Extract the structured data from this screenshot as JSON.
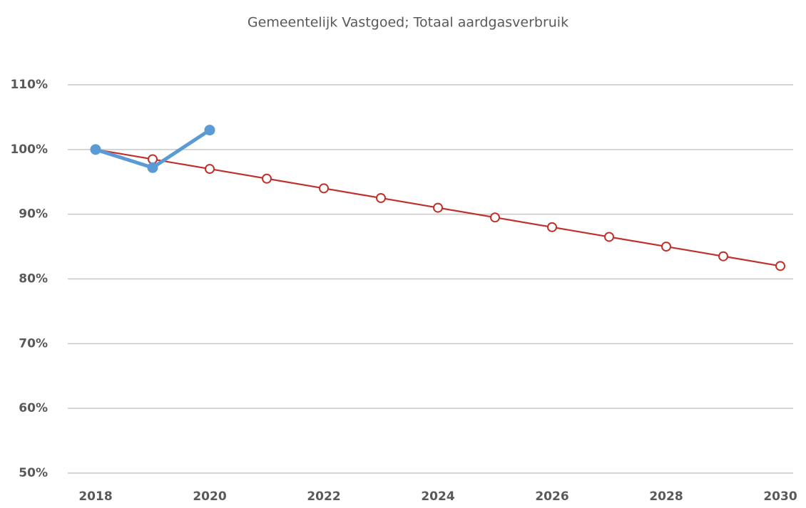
{
  "chart_data": {
    "type": "line",
    "title": "Gemeentelijk Vastgoed; Totaal aardgasverbruik",
    "x": [
      2018,
      2019,
      2020,
      2021,
      2022,
      2023,
      2024,
      2025,
      2026,
      2027,
      2028,
      2029,
      2030
    ],
    "series": [
      {
        "color": "#c0302b",
        "values": [
          100,
          98.5,
          97,
          95.5,
          94,
          92.5,
          91,
          89.5,
          88,
          86.5,
          85,
          83.5,
          82
        ]
      },
      {
        "color": "#5b9bd5",
        "values": [
          100,
          97.2,
          103,
          null,
          null,
          null,
          null,
          null,
          null,
          null,
          null,
          null,
          null
        ]
      }
    ],
    "xlim": [
      2018,
      2030
    ],
    "xticks": [
      2018,
      2020,
      2022,
      2024,
      2026,
      2028,
      2030
    ],
    "ylim": [
      50,
      110
    ],
    "yticks": [
      {
        "value": 50,
        "label": "50%"
      },
      {
        "value": 60,
        "label": "60%"
      },
      {
        "value": 70,
        "label": "70%"
      },
      {
        "value": 80,
        "label": "80%"
      },
      {
        "value": 90,
        "label": "90%"
      },
      {
        "value": 100,
        "label": "100%"
      },
      {
        "value": 110,
        "label": "110%"
      }
    ],
    "grid": true
  }
}
